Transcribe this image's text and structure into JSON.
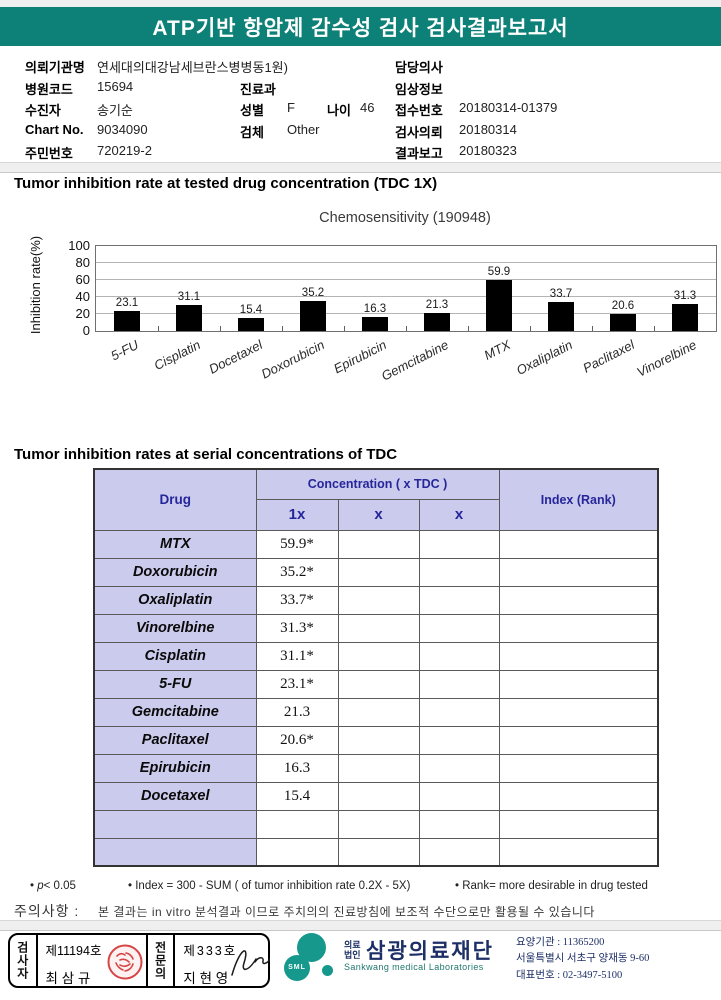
{
  "title_bar": {
    "title": "ATP기반 항암제 감수성 검사 검사결과보고서"
  },
  "patient": {
    "left": [
      {
        "label": "의뢰기관명",
        "value": "연세대의대강남세브란스병병동1원)"
      },
      {
        "label": "병원코드",
        "value": "15694"
      },
      {
        "label": "수진자",
        "value": "송기순"
      },
      {
        "label": "Chart No.",
        "value": "9034090"
      },
      {
        "label": "주민번호",
        "value": "720219-2"
      }
    ],
    "middle": {
      "dept_label": "진료과",
      "dept_value": "",
      "sex_label": "성별",
      "sex_value": "F",
      "age_label": "나이",
      "age_value": "46",
      "specimen_label": "검체",
      "specimen_value": "Other"
    },
    "right": [
      {
        "label": "담당의사",
        "value": ""
      },
      {
        "label": "임상정보",
        "value": ""
      },
      {
        "label": "접수번호",
        "value": "20180314-01379"
      },
      {
        "label": "검사의뢰",
        "value": "20180314"
      },
      {
        "label": "결과보고",
        "value": "20180323"
      }
    ]
  },
  "section1": {
    "heading": "Tumor inhibition rate at tested drug concentration (TDC 1X)"
  },
  "chart_data": {
    "type": "bar",
    "title": "Chemosensitivity (190948)",
    "ylabel": "Inhibition rate(%)",
    "xlabel": "",
    "ylim": [
      0,
      100
    ],
    "yticks": [
      0,
      20,
      40,
      60,
      80,
      100
    ],
    "grid": true,
    "legend": false,
    "bar_color": "#000000",
    "categories": [
      "5-FU",
      "Cisplatin",
      "Docetaxel",
      "Doxorubicin",
      "Epirubicin",
      "Gemcitabine",
      "MTX",
      "Oxaliplatin",
      "Paclitaxel",
      "Vinorelbine"
    ],
    "values": [
      23.1,
      31.1,
      15.4,
      35.2,
      16.3,
      21.3,
      59.9,
      33.7,
      20.6,
      31.3
    ]
  },
  "section2": {
    "heading": "Tumor inhibition rates at serial concentrations of TDC"
  },
  "table": {
    "col_drug": "Drug",
    "col_concentration": "Concentration ( x TDC )",
    "col_index": "Index (Rank)",
    "sub_cols": [
      "1x",
      "x",
      "x"
    ],
    "rows": [
      {
        "drug": "MTX",
        "c1": "59.9*",
        "c2": "",
        "c3": "",
        "index": ""
      },
      {
        "drug": "Doxorubicin",
        "c1": "35.2*",
        "c2": "",
        "c3": "",
        "index": ""
      },
      {
        "drug": "Oxaliplatin",
        "c1": "33.7*",
        "c2": "",
        "c3": "",
        "index": ""
      },
      {
        "drug": "Vinorelbine",
        "c1": "31.3*",
        "c2": "",
        "c3": "",
        "index": ""
      },
      {
        "drug": "Cisplatin",
        "c1": "31.1*",
        "c2": "",
        "c3": "",
        "index": ""
      },
      {
        "drug": "5-FU",
        "c1": "23.1*",
        "c2": "",
        "c3": "",
        "index": ""
      },
      {
        "drug": "Gemcitabine",
        "c1": "21.3",
        "c2": "",
        "c3": "",
        "index": ""
      },
      {
        "drug": "Paclitaxel",
        "c1": "20.6*",
        "c2": "",
        "c3": "",
        "index": ""
      },
      {
        "drug": "Epirubicin",
        "c1": "16.3",
        "c2": "",
        "c3": "",
        "index": ""
      },
      {
        "drug": "Docetaxel",
        "c1": "15.4",
        "c2": "",
        "c3": "",
        "index": ""
      }
    ],
    "empty_rows": 2
  },
  "footnotes": {
    "bullet": "•",
    "p_var": "p",
    "p_rest": "< 0.05",
    "index": "Index = 300 - SUM ( of tumor inhibition rate 0.2X  -  5X)",
    "rank": "Rank= more desirable in drug tested"
  },
  "caution": {
    "label": "주의사항 :",
    "text": "본 결과는 in vitro 분석결과 이므로 주치의의 진료방침에 보조적 수단으로만 활용될 수 있습니다"
  },
  "footer": {
    "examiner": {
      "role": "검사자",
      "cert": "제11194호",
      "name": "최 삼 규"
    },
    "specialist": {
      "role": "전문의",
      "cert": "제333호",
      "name": "지 현 영"
    },
    "logo_text": "SML",
    "org_prefix_1": "의료",
    "org_prefix_2": "법인",
    "org_name": "삼광의료재단",
    "org_name_en": "Sankwang medical Laboratories",
    "contact": [
      "요양기관 : 11365200",
      "서울특별시 서초구 양재동 9-60",
      "대표번호 : 02-3497-5100"
    ]
  },
  "colors": {
    "header_teal": "#0d8077",
    "table_header_bg": "#cbcbed",
    "table_header_text": "#26269b",
    "bar": "#000000",
    "logo_teal": "#17988d",
    "stamp_red": "#d64545",
    "org_navy": "#1d2f66"
  }
}
